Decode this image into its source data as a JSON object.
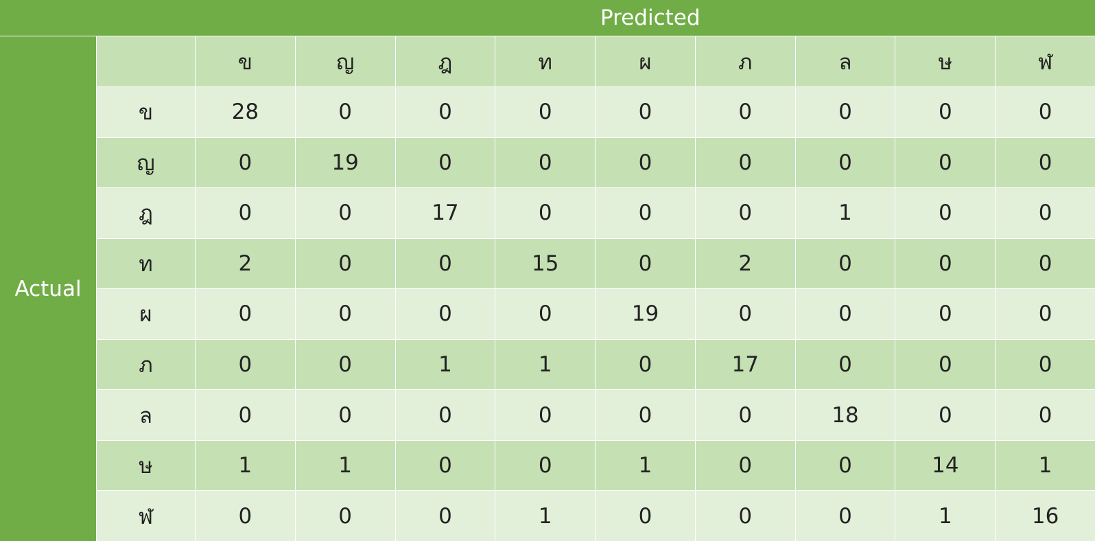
{
  "chart_data": {
    "type": "table",
    "title": "",
    "xlabel": "Predicted",
    "ylabel": "Actual",
    "predicted_labels": [
      "ข",
      "ญ",
      "ฎ",
      "ท",
      "ผ",
      "ภ",
      "ล",
      "ษ",
      "ฬ"
    ],
    "actual_labels": [
      "ข",
      "ญ",
      "ฎ",
      "ท",
      "ผ",
      "ภ",
      "ล",
      "ษ",
      "ฬ"
    ],
    "matrix": [
      [
        28,
        0,
        0,
        0,
        0,
        0,
        0,
        0,
        0
      ],
      [
        0,
        19,
        0,
        0,
        0,
        0,
        0,
        0,
        0
      ],
      [
        0,
        0,
        17,
        0,
        0,
        0,
        1,
        0,
        0
      ],
      [
        2,
        0,
        0,
        15,
        0,
        2,
        0,
        0,
        0
      ],
      [
        0,
        0,
        0,
        0,
        19,
        0,
        0,
        0,
        0
      ],
      [
        0,
        0,
        1,
        1,
        0,
        17,
        0,
        0,
        0
      ],
      [
        0,
        0,
        0,
        0,
        0,
        0,
        18,
        0,
        0
      ],
      [
        1,
        1,
        0,
        0,
        1,
        0,
        0,
        14,
        1
      ],
      [
        0,
        0,
        0,
        1,
        0,
        0,
        0,
        1,
        16
      ]
    ]
  },
  "colors": {
    "header": "#70ad47",
    "band_dark": "#c5e0b3",
    "band_light": "#e2efd9",
    "text_dark": "#222222",
    "text_light": "#ffffff"
  }
}
